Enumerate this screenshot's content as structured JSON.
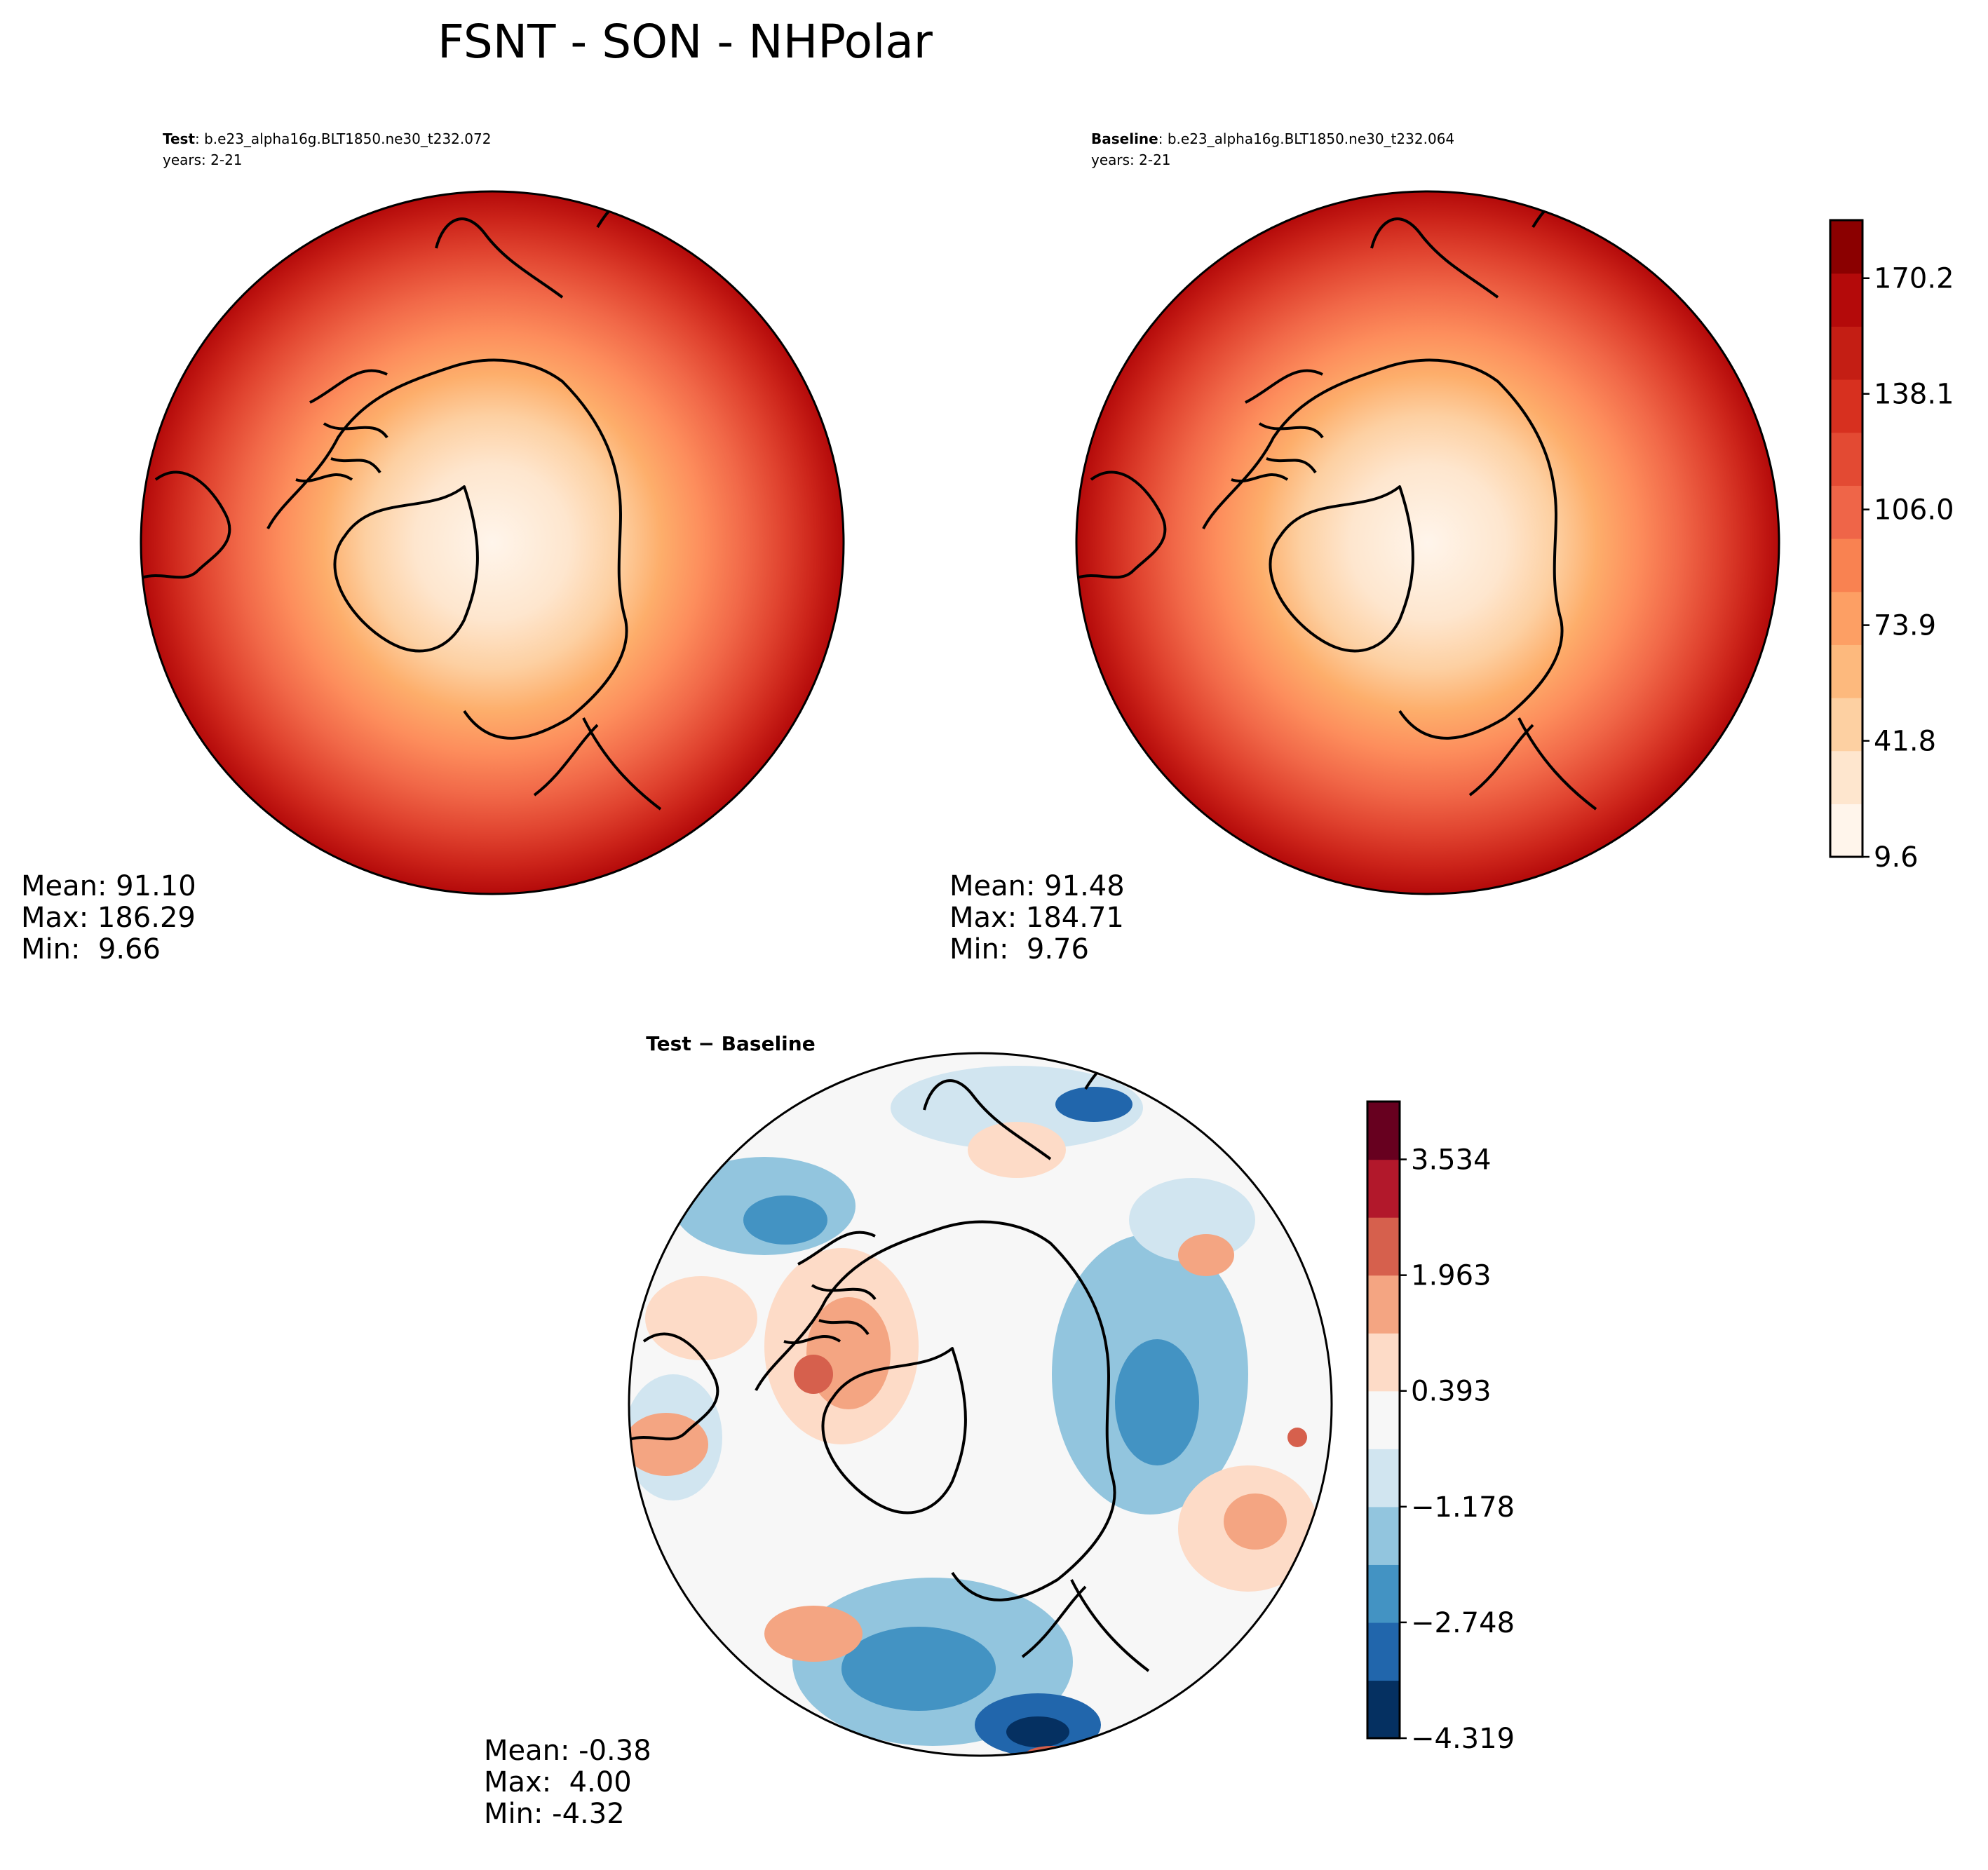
{
  "figure": {
    "title": "FSNT - SON - NHPolar"
  },
  "chart_data": [
    {
      "type": "heatmap",
      "projection": "north-polar-stereographic",
      "title_bold": "Test",
      "title_rest": ": b.e23_alpha16g.BLT1850.ne30_t232.072",
      "years": "years: 2-21",
      "stats": [
        "Mean: 91.10",
        "Max: 186.29",
        "Min:  9.66"
      ],
      "mean": 91.1,
      "max": 186.29,
      "min": 9.66
    },
    {
      "type": "heatmap",
      "projection": "north-polar-stereographic",
      "title_bold": "Baseline",
      "title_rest": ": b.e23_alpha16g.BLT1850.ne30_t232.064",
      "years": "years: 2-21",
      "stats": [
        "Mean: 91.48",
        "Max: 184.71",
        "Min:  9.76"
      ],
      "mean": 91.48,
      "max": 184.71,
      "min": 9.76,
      "colorbar": {
        "range": [
          9.6,
          186.3
        ],
        "tick_values": [
          9.6,
          41.8,
          73.9,
          106.0,
          138.1,
          170.2
        ],
        "tick_labels": [
          "9.6",
          "41.8",
          "73.9",
          "106.0",
          "138.1",
          "170.2"
        ],
        "colors": [
          "#fff5eb",
          "#fee6ce",
          "#fdd0a2",
          "#fdb97d",
          "#fd9f64",
          "#f98251",
          "#ef6548",
          "#e34a33",
          "#d7301f",
          "#c41e14",
          "#b40a0a",
          "#8b0000"
        ]
      }
    },
    {
      "type": "heatmap",
      "projection": "north-polar-stereographic",
      "title": "Test − Baseline",
      "stats": [
        "Mean: -0.38",
        "Max:  4.00",
        "Min: -4.32"
      ],
      "mean": -0.38,
      "max": 4.0,
      "min": -4.32,
      "colorbar": {
        "range": [
          -4.319,
          4.319
        ],
        "tick_values": [
          -4.319,
          -2.748,
          -1.178,
          0.393,
          1.963,
          3.534
        ],
        "tick_labels": [
          "−4.319",
          "−2.748",
          "−1.178",
          "0.393",
          "1.963",
          "3.534"
        ],
        "colors": [
          "#053061",
          "#2166ac",
          "#4393c3",
          "#92c5de",
          "#d1e5f0",
          "#f7f7f7",
          "#fddbc7",
          "#f4a582",
          "#d6604d",
          "#b2182b",
          "#67001f"
        ]
      }
    }
  ]
}
